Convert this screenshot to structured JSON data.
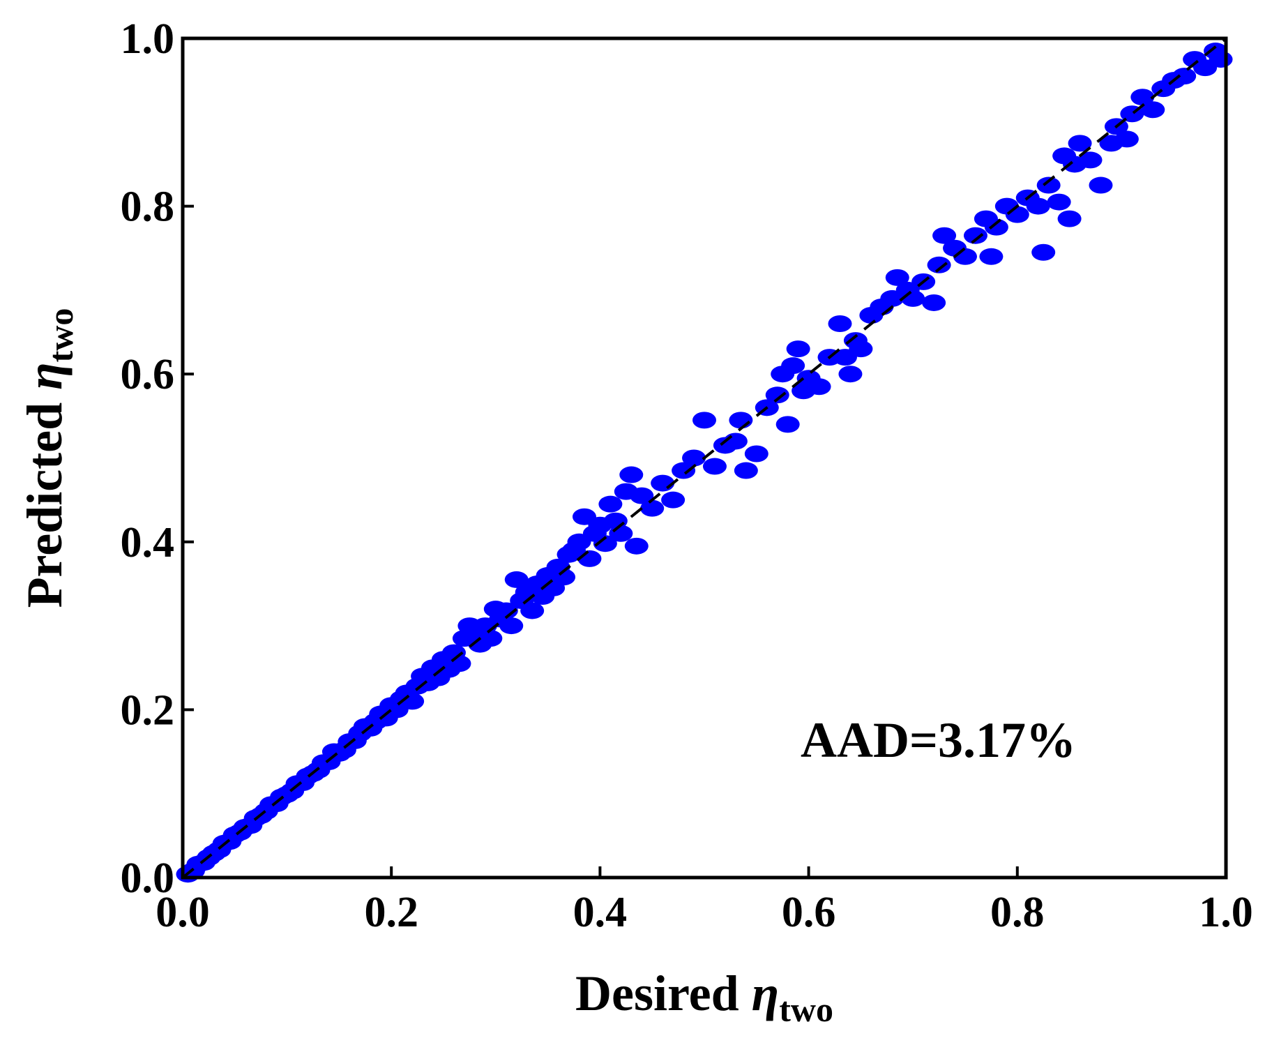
{
  "chart_data": {
    "type": "scatter",
    "title": "",
    "xlabel": {
      "text": "Desired ",
      "symbol": "η",
      "subscript": "two"
    },
    "ylabel": {
      "text": "Predicted ",
      "symbol": "η",
      "subscript": "two"
    },
    "xlim": [
      0.0,
      1.0
    ],
    "ylim": [
      0.0,
      1.0
    ],
    "xticks": [
      "0.0",
      "0.2",
      "0.4",
      "0.6",
      "0.8",
      "1.0"
    ],
    "yticks": [
      "0.0",
      "0.2",
      "0.4",
      "0.6",
      "0.8",
      "1.0"
    ],
    "grid": false,
    "annotation": "AAD=3.17%",
    "reference_line": {
      "style": "dashed",
      "from": [
        0.0,
        0.0
      ],
      "to": [
        1.0,
        1.0
      ],
      "color": "#000000"
    },
    "marker_color": "#0000ff",
    "series": [
      {
        "points": [
          [
            0.005,
            0.004
          ],
          [
            0.01,
            0.008
          ],
          [
            0.015,
            0.016
          ],
          [
            0.02,
            0.018
          ],
          [
            0.025,
            0.024
          ],
          [
            0.03,
            0.029
          ],
          [
            0.035,
            0.033
          ],
          [
            0.04,
            0.041
          ],
          [
            0.045,
            0.043
          ],
          [
            0.05,
            0.051
          ],
          [
            0.055,
            0.054
          ],
          [
            0.06,
            0.06
          ],
          [
            0.065,
            0.062
          ],
          [
            0.07,
            0.071
          ],
          [
            0.075,
            0.074
          ],
          [
            0.08,
            0.079
          ],
          [
            0.085,
            0.087
          ],
          [
            0.09,
            0.088
          ],
          [
            0.095,
            0.096
          ],
          [
            0.1,
            0.099
          ],
          [
            0.105,
            0.103
          ],
          [
            0.11,
            0.112
          ],
          [
            0.115,
            0.113
          ],
          [
            0.12,
            0.121
          ],
          [
            0.125,
            0.124
          ],
          [
            0.13,
            0.128
          ],
          [
            0.135,
            0.137
          ],
          [
            0.14,
            0.138
          ],
          [
            0.145,
            0.15
          ],
          [
            0.15,
            0.148
          ],
          [
            0.155,
            0.152
          ],
          [
            0.16,
            0.162
          ],
          [
            0.165,
            0.163
          ],
          [
            0.17,
            0.172
          ],
          [
            0.175,
            0.18
          ],
          [
            0.18,
            0.178
          ],
          [
            0.185,
            0.186
          ],
          [
            0.19,
            0.195
          ],
          [
            0.195,
            0.19
          ],
          [
            0.2,
            0.205
          ],
          [
            0.205,
            0.2
          ],
          [
            0.21,
            0.213
          ],
          [
            0.215,
            0.22
          ],
          [
            0.22,
            0.21
          ],
          [
            0.225,
            0.228
          ],
          [
            0.23,
            0.24
          ],
          [
            0.235,
            0.232
          ],
          [
            0.24,
            0.25
          ],
          [
            0.245,
            0.238
          ],
          [
            0.25,
            0.26
          ],
          [
            0.255,
            0.248
          ],
          [
            0.26,
            0.268
          ],
          [
            0.265,
            0.255
          ],
          [
            0.27,
            0.285
          ],
          [
            0.275,
            0.3
          ],
          [
            0.28,
            0.29
          ],
          [
            0.285,
            0.278
          ],
          [
            0.29,
            0.3
          ],
          [
            0.295,
            0.285
          ],
          [
            0.3,
            0.32
          ],
          [
            0.305,
            0.308
          ],
          [
            0.31,
            0.318
          ],
          [
            0.315,
            0.3
          ],
          [
            0.32,
            0.355
          ],
          [
            0.325,
            0.33
          ],
          [
            0.33,
            0.34
          ],
          [
            0.335,
            0.318
          ],
          [
            0.34,
            0.35
          ],
          [
            0.345,
            0.335
          ],
          [
            0.35,
            0.36
          ],
          [
            0.355,
            0.345
          ],
          [
            0.36,
            0.37
          ],
          [
            0.365,
            0.358
          ],
          [
            0.37,
            0.385
          ],
          [
            0.375,
            0.39
          ],
          [
            0.38,
            0.4
          ],
          [
            0.385,
            0.43
          ],
          [
            0.39,
            0.38
          ],
          [
            0.395,
            0.41
          ],
          [
            0.4,
            0.42
          ],
          [
            0.405,
            0.398
          ],
          [
            0.41,
            0.445
          ],
          [
            0.415,
            0.425
          ],
          [
            0.42,
            0.41
          ],
          [
            0.425,
            0.46
          ],
          [
            0.43,
            0.48
          ],
          [
            0.435,
            0.395
          ],
          [
            0.44,
            0.455
          ],
          [
            0.45,
            0.44
          ],
          [
            0.46,
            0.47
          ],
          [
            0.47,
            0.45
          ],
          [
            0.48,
            0.485
          ],
          [
            0.49,
            0.5
          ],
          [
            0.5,
            0.545
          ],
          [
            0.51,
            0.49
          ],
          [
            0.52,
            0.515
          ],
          [
            0.53,
            0.52
          ],
          [
            0.535,
            0.545
          ],
          [
            0.54,
            0.485
          ],
          [
            0.55,
            0.505
          ],
          [
            0.56,
            0.56
          ],
          [
            0.57,
            0.575
          ],
          [
            0.575,
            0.6
          ],
          [
            0.58,
            0.54
          ],
          [
            0.585,
            0.61
          ],
          [
            0.59,
            0.63
          ],
          [
            0.595,
            0.58
          ],
          [
            0.6,
            0.595
          ],
          [
            0.61,
            0.585
          ],
          [
            0.62,
            0.62
          ],
          [
            0.63,
            0.66
          ],
          [
            0.635,
            0.62
          ],
          [
            0.64,
            0.6
          ],
          [
            0.645,
            0.64
          ],
          [
            0.65,
            0.63
          ],
          [
            0.66,
            0.67
          ],
          [
            0.67,
            0.68
          ],
          [
            0.68,
            0.69
          ],
          [
            0.685,
            0.715
          ],
          [
            0.695,
            0.7
          ],
          [
            0.7,
            0.69
          ],
          [
            0.71,
            0.71
          ],
          [
            0.72,
            0.685
          ],
          [
            0.725,
            0.73
          ],
          [
            0.73,
            0.765
          ],
          [
            0.74,
            0.75
          ],
          [
            0.75,
            0.74
          ],
          [
            0.76,
            0.765
          ],
          [
            0.77,
            0.785
          ],
          [
            0.775,
            0.74
          ],
          [
            0.78,
            0.775
          ],
          [
            0.79,
            0.8
          ],
          [
            0.8,
            0.79
          ],
          [
            0.81,
            0.81
          ],
          [
            0.82,
            0.8
          ],
          [
            0.825,
            0.745
          ],
          [
            0.83,
            0.825
          ],
          [
            0.84,
            0.805
          ],
          [
            0.845,
            0.86
          ],
          [
            0.85,
            0.785
          ],
          [
            0.855,
            0.85
          ],
          [
            0.86,
            0.875
          ],
          [
            0.87,
            0.855
          ],
          [
            0.88,
            0.825
          ],
          [
            0.89,
            0.875
          ],
          [
            0.895,
            0.895
          ],
          [
            0.905,
            0.88
          ],
          [
            0.91,
            0.91
          ],
          [
            0.92,
            0.93
          ],
          [
            0.93,
            0.915
          ],
          [
            0.94,
            0.94
          ],
          [
            0.95,
            0.95
          ],
          [
            0.96,
            0.955
          ],
          [
            0.97,
            0.975
          ],
          [
            0.98,
            0.965
          ],
          [
            0.99,
            0.985
          ],
          [
            0.995,
            0.975
          ]
        ]
      }
    ]
  }
}
